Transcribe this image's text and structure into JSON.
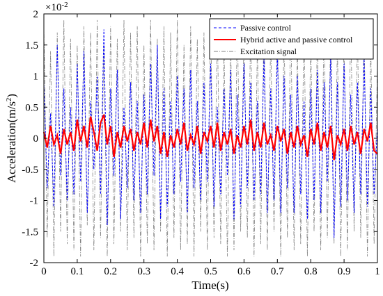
{
  "chart_data": {
    "type": "line",
    "title": "",
    "xlabel": "Time(s)",
    "ylabel": "Acceleration(m/s",
    "ylabel_sup": "2",
    "ylabel_close": ")",
    "y_multiplier_base": "×10",
    "y_multiplier_exp": "-2",
    "xlim": [
      0,
      1
    ],
    "ylim": [
      -2,
      2
    ],
    "xticks": [
      "0",
      "0.1",
      "0.2",
      "0.3",
      "0.4",
      "0.5",
      "0.6",
      "0.7",
      "0.8",
      "0.9",
      "1"
    ],
    "yticks": [
      "2",
      "1.5",
      "1",
      "0.5",
      "0",
      "-0.5",
      "-1",
      "-1.5",
      "-2"
    ],
    "legend_position": "top-right",
    "grid": false,
    "series": [
      {
        "name": "Hybrid active and passive control",
        "color": "#ff0000",
        "style": "solid",
        "x": [
          0,
          0.01,
          0.02,
          0.03,
          0.04,
          0.05,
          0.06,
          0.07,
          0.08,
          0.09,
          0.1,
          0.11,
          0.12,
          0.13,
          0.14,
          0.15,
          0.16,
          0.17,
          0.18,
          0.19,
          0.2,
          0.21,
          0.22,
          0.23,
          0.24,
          0.25,
          0.26,
          0.27,
          0.28,
          0.29,
          0.3,
          0.31,
          0.32,
          0.33,
          0.34,
          0.35,
          0.36,
          0.37,
          0.38,
          0.39,
          0.4,
          0.41,
          0.42,
          0.43,
          0.44,
          0.45,
          0.46,
          0.47,
          0.48,
          0.49,
          0.5,
          0.51,
          0.52,
          0.53,
          0.54,
          0.55,
          0.56,
          0.57,
          0.58,
          0.59,
          0.6,
          0.61,
          0.62,
          0.63,
          0.64,
          0.65,
          0.66,
          0.67,
          0.68,
          0.69,
          0.7,
          0.71,
          0.72,
          0.73,
          0.74,
          0.75,
          0.76,
          0.77,
          0.78,
          0.79,
          0.8,
          0.81,
          0.82,
          0.83,
          0.84,
          0.85,
          0.86,
          0.87,
          0.88,
          0.89,
          0.9,
          0.91,
          0.92,
          0.93,
          0.94,
          0.95,
          0.96,
          0.97,
          0.98,
          0.99,
          1
        ],
        "values": [
          0.1,
          -0.15,
          0.2,
          -0.1,
          0.05,
          -0.25,
          0.15,
          -0.1,
          0.1,
          -0.2,
          0.3,
          -0.05,
          0.2,
          -0.15,
          0.35,
          0.1,
          -0.2,
          0.25,
          0.38,
          -0.1,
          0.2,
          -0.3,
          0.1,
          -0.15,
          0.2,
          -0.05,
          0.15,
          -0.2,
          0.1,
          -0.1,
          0.25,
          -0.15,
          0.3,
          -0.05,
          0.2,
          -0.25,
          0.1,
          -0.3,
          0.05,
          -0.15,
          0.15,
          -0.1,
          0.25,
          -0.2,
          0.05,
          -0.1,
          0.2,
          -0.25,
          0.1,
          -0.05,
          0.2,
          -0.15,
          0.25,
          -0.2,
          0.1,
          -0.1,
          0.15,
          -0.25,
          0.05,
          -0.15,
          0.2,
          -0.1,
          0.3,
          -0.2,
          0.1,
          -0.15,
          0.25,
          -0.1,
          0.05,
          -0.2,
          0.2,
          -0.05,
          0.15,
          -0.25,
          0.1,
          -0.15,
          0.2,
          -0.1,
          0.05,
          -0.3,
          0.15,
          -0.1,
          0.25,
          -0.2,
          0.1,
          -0.15,
          0.2,
          -0.35,
          0.05,
          -0.1,
          0.15,
          -0.2,
          0.2,
          -0.1,
          0.1,
          -0.25,
          0.15,
          -0.05,
          0.25,
          -0.2,
          -0.25
        ]
      },
      {
        "name": "Passive control",
        "color": "#0000ff",
        "style": "dashed",
        "x": [
          0,
          0.01,
          0.02,
          0.03,
          0.04,
          0.05,
          0.06,
          0.07,
          0.08,
          0.09,
          0.1,
          0.11,
          0.12,
          0.13,
          0.14,
          0.15,
          0.16,
          0.17,
          0.18,
          0.19,
          0.2,
          0.21,
          0.22,
          0.23,
          0.24,
          0.25,
          0.26,
          0.27,
          0.28,
          0.29,
          0.3,
          0.31,
          0.32,
          0.33,
          0.34,
          0.35,
          0.36,
          0.37,
          0.38,
          0.39,
          0.4,
          0.41,
          0.42,
          0.43,
          0.44,
          0.45,
          0.46,
          0.47,
          0.48,
          0.49,
          0.5,
          0.51,
          0.52,
          0.53,
          0.54,
          0.55,
          0.56,
          0.57,
          0.58,
          0.59,
          0.6,
          0.61,
          0.62,
          0.63,
          0.64,
          0.65,
          0.66,
          0.67,
          0.68,
          0.69,
          0.7,
          0.71,
          0.72,
          0.73,
          0.74,
          0.75,
          0.76,
          0.77,
          0.78,
          0.79,
          0.8,
          0.81,
          0.82,
          0.83,
          0.84,
          0.85,
          0.86,
          0.87,
          0.88,
          0.89,
          0.9,
          0.91,
          0.92,
          0.93,
          0.94,
          0.95,
          0.96,
          0.97,
          0.98,
          0.99,
          1
        ],
        "values": [
          0.9,
          -0.8,
          0.4,
          -1.1,
          1.5,
          -0.6,
          0.8,
          -1.0,
          0.5,
          -0.9,
          1.2,
          -0.7,
          1.4,
          -1.2,
          0.6,
          -0.5,
          1.0,
          -0.9,
          1.75,
          -1.4,
          0.8,
          -0.6,
          1.1,
          -1.3,
          0.5,
          -0.8,
          0.9,
          -1.0,
          0.6,
          -1.2,
          0.7,
          -0.9,
          1.2,
          -0.6,
          1.5,
          -1.3,
          0.8,
          -1.1,
          0.6,
          -0.9,
          1.0,
          -0.7,
          0.8,
          -1.2,
          1.1,
          -0.8,
          0.6,
          -1.0,
          0.9,
          -0.7,
          1.2,
          -1.1,
          0.5,
          -0.9,
          0.8,
          -0.6,
          1.1,
          -1.3,
          0.7,
          -1.1,
          1.2,
          -0.8,
          0.9,
          -1.0,
          0.6,
          -0.9,
          1.3,
          -1.2,
          0.8,
          -1.0,
          1.4,
          -1.2,
          1.0,
          -0.8,
          0.7,
          -1.2,
          1.0,
          -0.9,
          0.6,
          -1.3,
          0.8,
          -1.0,
          1.1,
          -1.2,
          0.9,
          -0.7,
          1.3,
          -1.6,
          0.9,
          -1.1,
          1.2,
          -1.0,
          0.7,
          -1.2,
          0.9,
          -0.9,
          1.3,
          -1.1,
          0.8,
          -0.9,
          0.2
        ]
      },
      {
        "name": "Excitation signal",
        "color": "#7f7f7f",
        "style": "dashdot",
        "x": [
          0,
          0.01,
          0.02,
          0.03,
          0.04,
          0.05,
          0.06,
          0.07,
          0.08,
          0.09,
          0.1,
          0.11,
          0.12,
          0.13,
          0.14,
          0.15,
          0.16,
          0.17,
          0.18,
          0.19,
          0.2,
          0.21,
          0.22,
          0.23,
          0.24,
          0.25,
          0.26,
          0.27,
          0.28,
          0.29,
          0.3,
          0.31,
          0.32,
          0.33,
          0.34,
          0.35,
          0.36,
          0.37,
          0.38,
          0.39,
          0.4,
          0.41,
          0.42,
          0.43,
          0.44,
          0.45,
          0.46,
          0.47,
          0.48,
          0.49,
          0.5,
          0.51,
          0.52,
          0.53,
          0.54,
          0.55,
          0.56,
          0.57,
          0.58,
          0.59,
          0.6,
          0.61,
          0.62,
          0.63,
          0.64,
          0.65,
          0.66,
          0.67,
          0.68,
          0.69,
          0.7,
          0.71,
          0.72,
          0.73,
          0.74,
          0.75,
          0.76,
          0.77,
          0.78,
          0.79,
          0.8,
          0.81,
          0.82,
          0.83,
          0.84,
          0.85,
          0.86,
          0.87,
          0.88,
          0.89,
          0.9,
          0.91,
          0.92,
          0.93,
          0.94,
          0.95,
          0.96,
          0.97,
          0.98,
          0.99,
          1
        ],
        "values": [
          1.8,
          -1.6,
          1.4,
          -1.9,
          1.7,
          -1.5,
          1.9,
          -1.7,
          1.6,
          -1.8,
          1.5,
          -1.9,
          1.8,
          -1.4,
          1.7,
          -1.8,
          1.9,
          -1.6,
          1.5,
          -1.9,
          1.8,
          -1.7,
          1.6,
          -1.5,
          1.9,
          -1.8,
          1.7,
          -1.6,
          1.8,
          -1.9,
          1.5,
          -1.7,
          1.9,
          -1.8,
          1.6,
          -1.5,
          1.8,
          -1.9,
          1.7,
          -1.6,
          1.9,
          -1.8,
          1.5,
          -1.7,
          1.8,
          -1.9,
          1.6,
          -1.5,
          1.7,
          -1.8,
          1.9,
          -1.6,
          1.8,
          -1.7,
          1.5,
          -1.9,
          1.6,
          -1.8,
          1.9,
          -1.5,
          1.7,
          -1.6,
          1.8,
          -1.9,
          1.5,
          -1.7,
          1.9,
          -1.8,
          1.6,
          -1.5,
          1.8,
          -1.9,
          1.7,
          -1.6,
          1.9,
          -1.8,
          1.5,
          -1.7,
          1.8,
          -1.9,
          1.6,
          -1.5,
          1.7,
          -1.8,
          1.9,
          -1.6,
          1.8,
          -1.7,
          1.5,
          -1.9,
          1.6,
          -1.8,
          1.9,
          -1.5,
          1.7,
          -1.6,
          1.8,
          -1.9,
          1.5,
          -1.7,
          1.2
        ]
      }
    ],
    "legend": [
      {
        "label": "Passive control",
        "color": "#0000ff",
        "style": "dashed"
      },
      {
        "label": "Hybrid active and passive control",
        "color": "#ff0000",
        "style": "solid"
      },
      {
        "label": "Excitation signal",
        "color": "#7f7f7f",
        "style": "dashdot"
      }
    ]
  }
}
